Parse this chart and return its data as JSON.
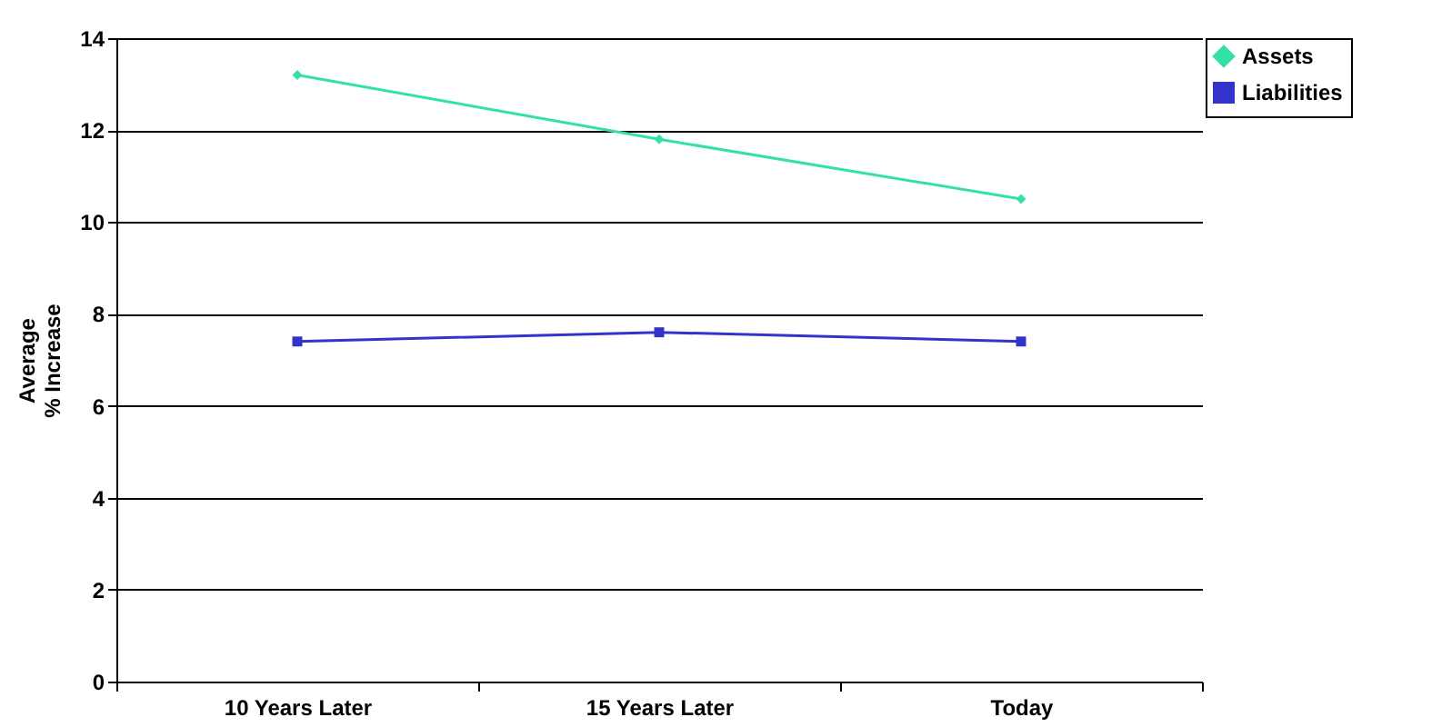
{
  "chart_data": {
    "type": "line",
    "ylabel": "Average % Increase",
    "categories": [
      "10 Years Later",
      "15 Years Later",
      "Today"
    ],
    "series": [
      {
        "name": "Assets",
        "color": "#33e0a8",
        "marker": "diamond",
        "values": [
          13.2,
          11.8,
          10.5
        ]
      },
      {
        "name": "Liabilities",
        "color": "#3333cc",
        "marker": "square",
        "values": [
          7.4,
          7.6,
          7.4
        ]
      }
    ],
    "ylim": [
      0,
      14
    ],
    "yticks": [
      0,
      2,
      4,
      6,
      8,
      10,
      12,
      14
    ],
    "grid": "y",
    "legend": "right"
  }
}
